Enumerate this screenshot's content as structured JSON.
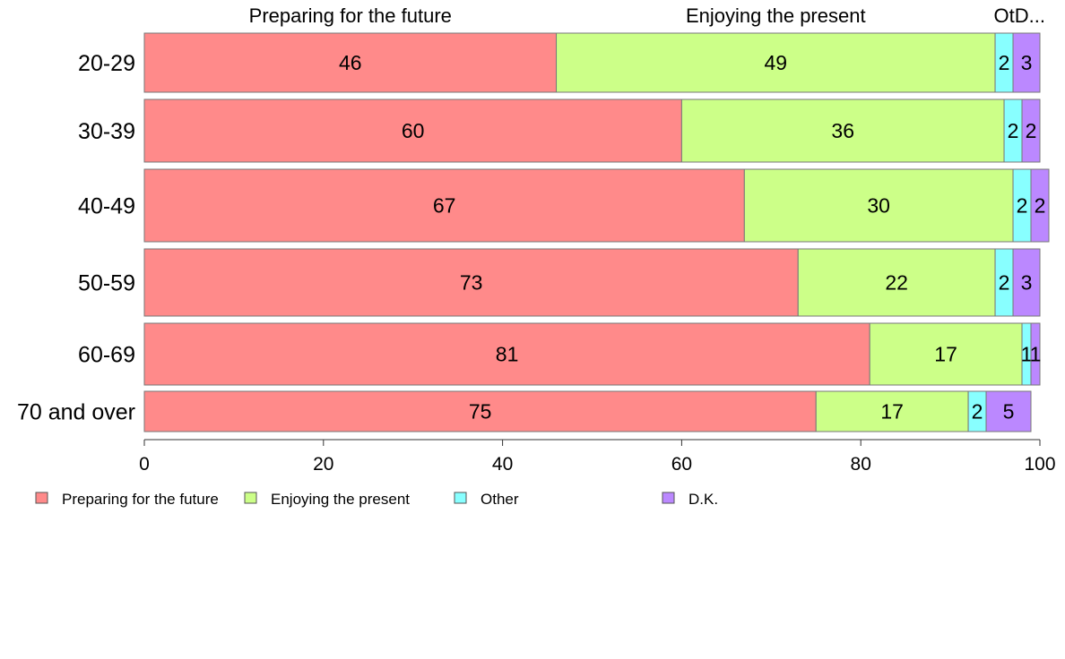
{
  "chart_data": {
    "type": "bar",
    "orientation": "horizontal",
    "stacked": true,
    "categories": [
      "20-29",
      "30-39",
      "40-49",
      "50-59",
      "60-69",
      "70 and over"
    ],
    "series": [
      {
        "name": "Preparing for the future",
        "color": "#ff8a8a",
        "values": [
          46,
          60,
          67,
          73,
          81,
          75
        ]
      },
      {
        "name": "Enjoying the present",
        "color": "#ccff88",
        "values": [
          49,
          36,
          30,
          22,
          17,
          17
        ]
      },
      {
        "name": "Other",
        "color": "#88ffff",
        "values": [
          2,
          2,
          2,
          2,
          1,
          2
        ]
      },
      {
        "name": "D.K.",
        "color": "#bb88ff",
        "values": [
          3,
          2,
          2,
          3,
          1,
          5
        ]
      }
    ],
    "top_labels": [
      "Preparing for the future",
      "Enjoying the present",
      "OtD..."
    ],
    "xlim": [
      0,
      100
    ],
    "xticks": [
      0,
      20,
      40,
      60,
      80,
      100
    ],
    "grid": false,
    "legend_position": "bottom-left"
  }
}
